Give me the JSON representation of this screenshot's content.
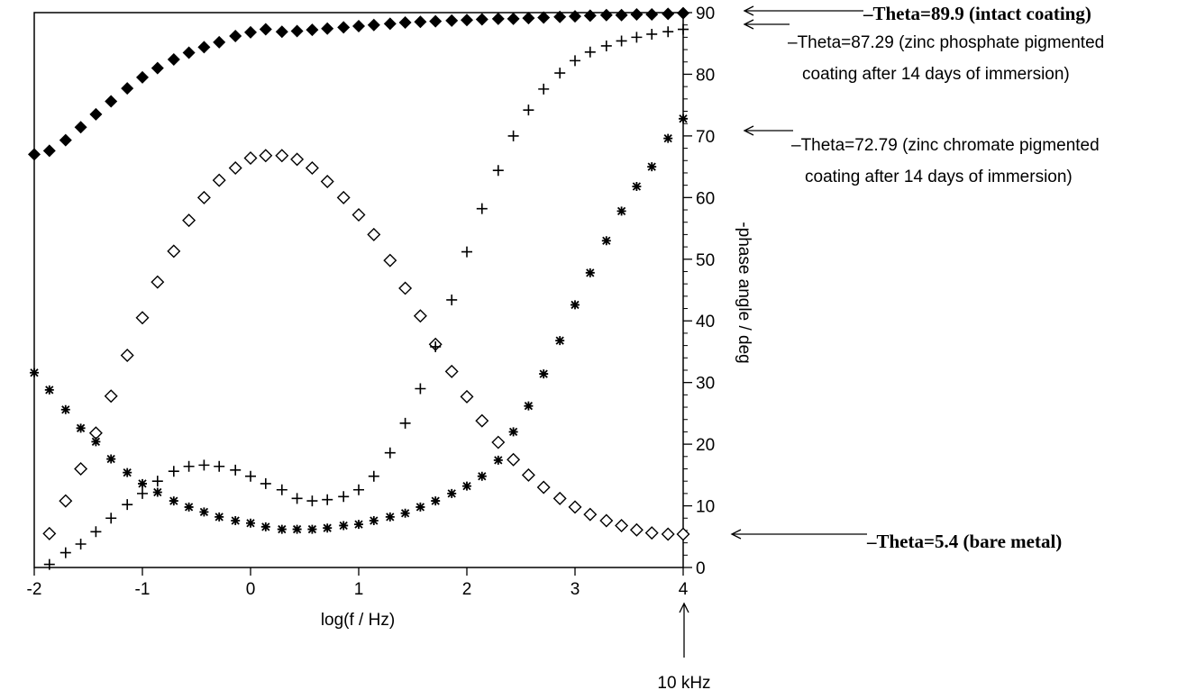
{
  "chart_data": {
    "type": "scatter",
    "xlabel": "log(f / Hz)",
    "ylabel": "-phase angle / deg",
    "xlim": [
      -2,
      4
    ],
    "ylim": [
      0,
      90
    ],
    "x_ticks": [
      "-2",
      "-1",
      "0",
      "1",
      "2",
      "3",
      "4"
    ],
    "y_ticks": [
      "0",
      "10",
      "20",
      "30",
      "40",
      "50",
      "60",
      "70",
      "80",
      "90"
    ],
    "grid": false,
    "y_axis_side": "right",
    "series": [
      {
        "marker": "filled-diamond",
        "points": [
          [
            -2.0,
            67.0
          ],
          [
            -1.86,
            67.6
          ],
          [
            -1.71,
            69.3
          ],
          [
            -1.57,
            71.4
          ],
          [
            -1.43,
            73.5
          ],
          [
            -1.29,
            75.6
          ],
          [
            -1.14,
            77.7
          ],
          [
            -1.0,
            79.5
          ],
          [
            -0.86,
            81.0
          ],
          [
            -0.71,
            82.4
          ],
          [
            -0.57,
            83.5
          ],
          [
            -0.43,
            84.4
          ],
          [
            -0.29,
            85.2
          ],
          [
            -0.14,
            86.2
          ],
          [
            0.0,
            86.8
          ],
          [
            0.14,
            87.3
          ],
          [
            0.29,
            86.9
          ],
          [
            0.43,
            87.0
          ],
          [
            0.57,
            87.2
          ],
          [
            0.71,
            87.4
          ],
          [
            0.86,
            87.6
          ],
          [
            1.0,
            87.8
          ],
          [
            1.14,
            88.0
          ],
          [
            1.29,
            88.2
          ],
          [
            1.43,
            88.4
          ],
          [
            1.57,
            88.5
          ],
          [
            1.71,
            88.6
          ],
          [
            1.86,
            88.7
          ],
          [
            2.0,
            88.8
          ],
          [
            2.14,
            88.9
          ],
          [
            2.29,
            89.0
          ],
          [
            2.43,
            89.0
          ],
          [
            2.57,
            89.1
          ],
          [
            2.71,
            89.2
          ],
          [
            2.86,
            89.3
          ],
          [
            3.0,
            89.4
          ],
          [
            3.14,
            89.5
          ],
          [
            3.29,
            89.6
          ],
          [
            3.43,
            89.6
          ],
          [
            3.57,
            89.7
          ],
          [
            3.71,
            89.7
          ],
          [
            3.86,
            89.8
          ],
          [
            4.0,
            89.9
          ]
        ]
      },
      {
        "marker": "open-diamond",
        "points": [
          [
            -1.86,
            5.5
          ],
          [
            -1.71,
            10.8
          ],
          [
            -1.57,
            16.0
          ],
          [
            -1.43,
            21.8
          ],
          [
            -1.29,
            27.8
          ],
          [
            -1.14,
            34.4
          ],
          [
            -1.0,
            40.5
          ],
          [
            -0.86,
            46.3
          ],
          [
            -0.71,
            51.3
          ],
          [
            -0.57,
            56.3
          ],
          [
            -0.43,
            60.0
          ],
          [
            -0.29,
            62.8
          ],
          [
            -0.14,
            64.8
          ],
          [
            0.0,
            66.4
          ],
          [
            0.14,
            66.8
          ],
          [
            0.29,
            66.8
          ],
          [
            0.43,
            66.2
          ],
          [
            0.57,
            64.8
          ],
          [
            0.71,
            62.6
          ],
          [
            0.86,
            60.0
          ],
          [
            1.0,
            57.2
          ],
          [
            1.14,
            54.0
          ],
          [
            1.29,
            49.8
          ],
          [
            1.43,
            45.3
          ],
          [
            1.57,
            40.8
          ],
          [
            1.71,
            36.2
          ],
          [
            1.86,
            31.8
          ],
          [
            2.0,
            27.7
          ],
          [
            2.14,
            23.8
          ],
          [
            2.29,
            20.3
          ],
          [
            2.43,
            17.5
          ],
          [
            2.57,
            15.0
          ],
          [
            2.71,
            13.0
          ],
          [
            2.86,
            11.2
          ],
          [
            3.0,
            9.8
          ],
          [
            3.14,
            8.6
          ],
          [
            3.29,
            7.6
          ],
          [
            3.43,
            6.8
          ],
          [
            3.57,
            6.1
          ],
          [
            3.71,
            5.6
          ],
          [
            3.86,
            5.4
          ],
          [
            4.0,
            5.4
          ]
        ]
      },
      {
        "marker": "plus",
        "points": [
          [
            -1.86,
            0.5
          ],
          [
            -1.71,
            2.4
          ],
          [
            -1.57,
            3.8
          ],
          [
            -1.43,
            5.8
          ],
          [
            -1.29,
            8.0
          ],
          [
            -1.14,
            10.2
          ],
          [
            -1.0,
            12.0
          ],
          [
            -0.86,
            14.0
          ],
          [
            -0.71,
            15.6
          ],
          [
            -0.57,
            16.4
          ],
          [
            -0.43,
            16.6
          ],
          [
            -0.29,
            16.4
          ],
          [
            -0.14,
            15.8
          ],
          [
            0.0,
            14.8
          ],
          [
            0.14,
            13.6
          ],
          [
            0.29,
            12.6
          ],
          [
            0.43,
            11.2
          ],
          [
            0.57,
            10.8
          ],
          [
            0.71,
            11.0
          ],
          [
            0.86,
            11.5
          ],
          [
            1.0,
            12.6
          ],
          [
            1.14,
            14.8
          ],
          [
            1.29,
            18.6
          ],
          [
            1.43,
            23.4
          ],
          [
            1.57,
            29.0
          ],
          [
            1.71,
            35.8
          ],
          [
            1.86,
            43.4
          ],
          [
            2.0,
            51.2
          ],
          [
            2.14,
            58.2
          ],
          [
            2.29,
            64.4
          ],
          [
            2.43,
            70.0
          ],
          [
            2.57,
            74.2
          ],
          [
            2.71,
            77.6
          ],
          [
            2.86,
            80.2
          ],
          [
            3.0,
            82.2
          ],
          [
            3.14,
            83.6
          ],
          [
            3.29,
            84.6
          ],
          [
            3.43,
            85.4
          ],
          [
            3.57,
            86.0
          ],
          [
            3.71,
            86.5
          ],
          [
            3.86,
            86.9
          ],
          [
            4.0,
            87.29
          ]
        ]
      },
      {
        "marker": "asterisk",
        "points": [
          [
            -2.0,
            31.6
          ],
          [
            -1.86,
            28.8
          ],
          [
            -1.71,
            25.6
          ],
          [
            -1.57,
            22.6
          ],
          [
            -1.43,
            20.4
          ],
          [
            -1.29,
            17.6
          ],
          [
            -1.14,
            15.4
          ],
          [
            -1.0,
            13.6
          ],
          [
            -0.86,
            12.2
          ],
          [
            -0.71,
            10.8
          ],
          [
            -0.57,
            9.8
          ],
          [
            -0.43,
            9.0
          ],
          [
            -0.29,
            8.2
          ],
          [
            -0.14,
            7.6
          ],
          [
            0.0,
            7.2
          ],
          [
            0.14,
            6.6
          ],
          [
            0.29,
            6.2
          ],
          [
            0.43,
            6.2
          ],
          [
            0.57,
            6.2
          ],
          [
            0.71,
            6.4
          ],
          [
            0.86,
            6.8
          ],
          [
            1.0,
            7.0
          ],
          [
            1.14,
            7.6
          ],
          [
            1.29,
            8.2
          ],
          [
            1.43,
            8.8
          ],
          [
            1.57,
            9.8
          ],
          [
            1.71,
            10.8
          ],
          [
            1.86,
            12.0
          ],
          [
            2.0,
            13.2
          ],
          [
            2.14,
            14.8
          ],
          [
            2.29,
            17.4
          ],
          [
            2.43,
            22.0
          ],
          [
            2.57,
            26.2
          ],
          [
            2.71,
            31.4
          ],
          [
            2.86,
            36.8
          ],
          [
            3.0,
            42.6
          ],
          [
            3.14,
            47.8
          ],
          [
            3.29,
            53.0
          ],
          [
            3.43,
            57.8
          ],
          [
            3.57,
            61.8
          ],
          [
            3.71,
            65.0
          ],
          [
            3.86,
            69.6
          ],
          [
            4.0,
            72.79
          ]
        ]
      }
    ],
    "annotations": {
      "intact": "–Theta=89.9 (intact coating)",
      "phosphate_line1": "–Theta=87.29 (zinc phosphate pigmented",
      "phosphate_line2": "coating after 14 days of immersion)",
      "chromate_line1": "–Theta=72.79 (zinc chromate pigmented",
      "chromate_line2": "coating after 14 days of immersion)",
      "bare": "–Theta=5.4 (bare metal)",
      "freq_marker": "10 kHz"
    }
  }
}
